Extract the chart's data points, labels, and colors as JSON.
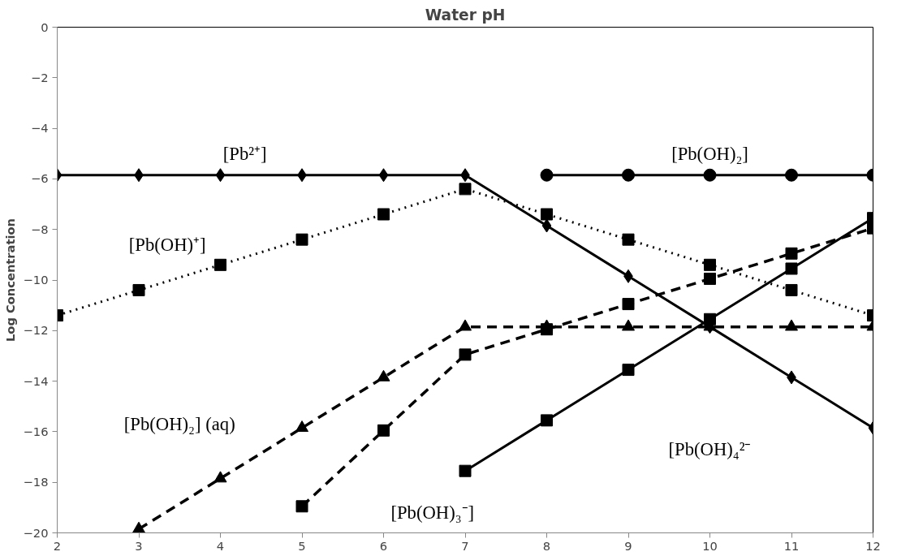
{
  "chart_data": {
    "type": "line",
    "title": "Water pH",
    "ylabel": "Log Concentration",
    "x": [
      2,
      3,
      4,
      5,
      6,
      7,
      8,
      9,
      10,
      11,
      12
    ],
    "xlim": [
      2,
      12
    ],
    "xticks": [
      2,
      3,
      4,
      5,
      6,
      7,
      8,
      9,
      10,
      11,
      12
    ],
    "ylim": [
      -20,
      0
    ],
    "yticks": [
      -20,
      -18,
      -16,
      -14,
      -12,
      -10,
      -8,
      -6,
      -4,
      -2,
      0
    ],
    "grid": false,
    "series": [
      {
        "color": "#000000",
        "marker": "diamond",
        "line_style": "solid",
        "values": [
          -5.85,
          -5.85,
          -5.85,
          -5.85,
          -5.85,
          -5.85,
          -7.85,
          -9.85,
          -11.85,
          -13.85,
          -15.85
        ]
      },
      {
        "color": "#000000",
        "marker": "square",
        "line_style": "dotted",
        "values": [
          -11.4,
          -10.4,
          -9.4,
          -8.4,
          -7.4,
          -6.4,
          -7.4,
          -8.4,
          -9.4,
          -10.4,
          -11.4
        ]
      },
      {
        "color": "#000000",
        "marker": "triangle",
        "line_style": "dashed",
        "values": [
          null,
          -19.85,
          -17.85,
          -15.85,
          -13.85,
          -11.85,
          -11.85,
          -11.85,
          -11.85,
          -11.85,
          -11.85
        ]
      },
      {
        "color": "#000000",
        "marker": "square",
        "line_style": "dashed",
        "values": [
          null,
          null,
          null,
          -18.95,
          -15.95,
          -12.95,
          -11.95,
          -10.95,
          -9.95,
          -8.95,
          -7.95
        ]
      },
      {
        "color": "#000000",
        "marker": "square",
        "line_style": "solid",
        "values": [
          null,
          null,
          null,
          null,
          null,
          -17.55,
          -15.55,
          -13.55,
          -11.55,
          -9.55,
          -7.55
        ]
      },
      {
        "color": "#000000",
        "marker": "circle",
        "line_style": "solid",
        "values": [
          null,
          null,
          null,
          null,
          null,
          null,
          -5.85,
          -5.85,
          -5.85,
          -5.85,
          -5.85
        ]
      }
    ],
    "annotations": [
      "[Pb²⁺]",
      "[Pb(OH)₂]",
      "[Pb(OH)⁺]",
      "[Pb(OH)₂] (aq)",
      "[Pb(OH)₃⁻]",
      "[Pb(OH)₄²⁻"
    ]
  }
}
